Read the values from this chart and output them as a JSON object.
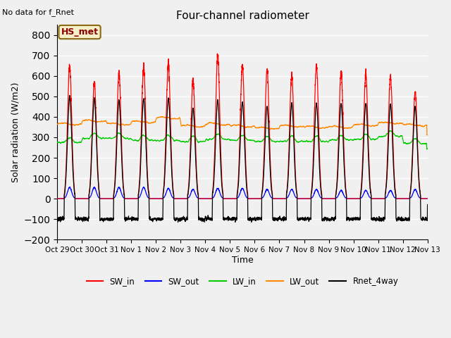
{
  "title": "Four-channel radiometer",
  "top_left_text": "No data for f_Rnet",
  "ylabel": "Solar radiation (W/m2)",
  "xlabel": "Time",
  "ylim": [
    -200,
    850
  ],
  "yticks": [
    -200,
    -100,
    0,
    100,
    200,
    300,
    400,
    500,
    600,
    700,
    800
  ],
  "x_labels": [
    "Oct 29",
    "Oct 30",
    "Oct 31",
    "Nov 1",
    "Nov 2",
    "Nov 3",
    "Nov 4",
    "Nov 5",
    "Nov 6",
    "Nov 7",
    "Nov 8",
    "Nov 9",
    "Nov 10",
    "Nov 11",
    "Nov 12",
    "Nov 13"
  ],
  "annotation_text": "HS_met",
  "annotation_box_color": "#f5f0c8",
  "annotation_box_edge": "#8B6914",
  "background_color": "#f0f0f0",
  "plot_bg_color": "#f0f0f0",
  "grid_color": "#ffffff",
  "colors": {
    "SW_in": "#ff0000",
    "SW_out": "#0000ff",
    "LW_in": "#00cc00",
    "LW_out": "#ff8800",
    "Rnet_4way": "#000000"
  },
  "legend": [
    "SW_in",
    "SW_out",
    "LW_in",
    "LW_out",
    "Rnet_4way"
  ],
  "num_days": 15,
  "SW_in_peaks": [
    650,
    570,
    610,
    645,
    655,
    580,
    700,
    655,
    630,
    605,
    650,
    620,
    605,
    600,
    520
  ],
  "SW_out_peaks": [
    55,
    55,
    55,
    55,
    50,
    45,
    50,
    50,
    45,
    45,
    45,
    40,
    40,
    40,
    45
  ],
  "LW_in_base": [
    275,
    295,
    295,
    285,
    285,
    280,
    290,
    285,
    280,
    280,
    280,
    285,
    290,
    305,
    270
  ],
  "LW_out_base": [
    365,
    380,
    365,
    375,
    395,
    355,
    365,
    355,
    345,
    355,
    350,
    350,
    360,
    370,
    360
  ],
  "Rnet_peaks": [
    500,
    490,
    480,
    490,
    490,
    440,
    480,
    470,
    450,
    465,
    465,
    465,
    465,
    460,
    450
  ],
  "Rnet_night": -100
}
